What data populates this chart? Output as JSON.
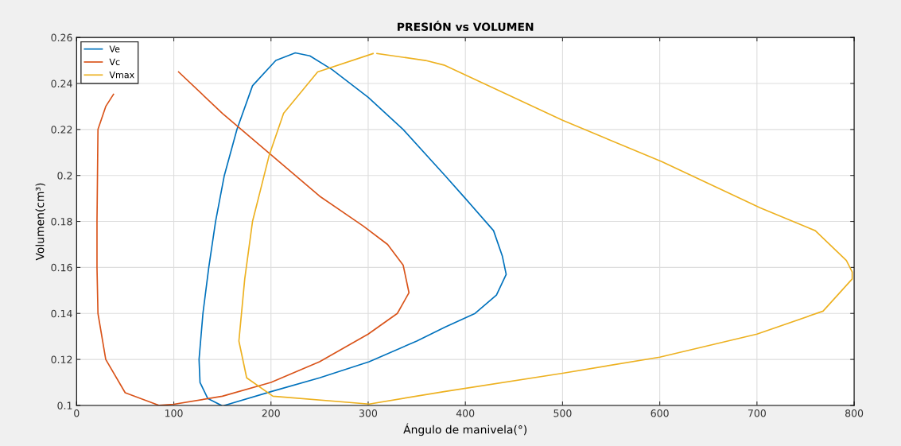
{
  "chart_data": {
    "type": "line",
    "title": "PRESIÓN vs VOLUMEN",
    "xlabel": "Ángulo de manivela(°)",
    "ylabel": "Volumen(cm³)",
    "xlim": [
      0,
      800
    ],
    "xticks": [
      0,
      100,
      200,
      300,
      400,
      500,
      600,
      700,
      800
    ],
    "ylim": [
      0.1,
      0.26
    ],
    "yticks": [
      {
        "value": 0.1,
        "label": "0.1"
      },
      0.12,
      0.14,
      0.16,
      0.18,
      {
        "value": 0.2,
        "label": "0.2"
      },
      0.22,
      0.24,
      0.26
    ],
    "grid": true,
    "legend": "top left",
    "marker": "none",
    "line_style": "solid",
    "series": [
      {
        "name": "Ve",
        "color": "#0072bd",
        "x": [
          152,
          200,
          250,
          301,
          350,
          379,
          410,
          432,
          442,
          438,
          429,
          400,
          379,
          336,
          300,
          263,
          240,
          225,
          205,
          181,
          165,
          152,
          143,
          136,
          130,
          126,
          127,
          135,
          149
        ],
        "values": [
          0.1,
          0.106,
          0.112,
          0.119,
          0.128,
          0.134,
          0.14,
          0.148,
          0.157,
          0.165,
          0.176,
          0.19,
          0.2,
          0.22,
          0.234,
          0.246,
          0.252,
          0.2533,
          0.25,
          0.239,
          0.22,
          0.2,
          0.18,
          0.16,
          0.14,
          0.12,
          0.11,
          0.103,
          0.1
        ]
      },
      {
        "name": "Vc",
        "color": "#d95319",
        "x": [
          105,
          150,
          200,
          250,
          295,
          320,
          336,
          342,
          330,
          300,
          250,
          200,
          150,
          100,
          85,
          50,
          30,
          22,
          21,
          21,
          22,
          30,
          38
        ],
        "values": [
          0.245,
          0.227,
          0.209,
          0.191,
          0.178,
          0.17,
          0.161,
          0.149,
          0.14,
          0.131,
          0.119,
          0.11,
          0.104,
          0.1005,
          0.1,
          0.1055,
          0.12,
          0.14,
          0.16,
          0.18,
          0.22,
          0.23,
          0.2353
        ]
      },
      {
        "name": "Vmax",
        "color": "#edb120",
        "x": [
          309,
          359,
          378,
          500,
          602,
          703,
          760,
          792,
          798,
          798,
          768,
          700,
          600,
          500,
          378,
          301,
          202,
          175,
          167,
          173,
          181,
          187,
          198,
          213,
          248,
          305
        ],
        "values": [
          0.253,
          0.25,
          0.248,
          0.224,
          0.206,
          0.186,
          0.176,
          0.163,
          0.158,
          0.155,
          0.141,
          0.131,
          0.121,
          0.114,
          0.106,
          0.1006,
          0.104,
          0.112,
          0.128,
          0.155,
          0.18,
          0.19,
          0.2085,
          0.227,
          0.245,
          0.253
        ]
      }
    ]
  }
}
